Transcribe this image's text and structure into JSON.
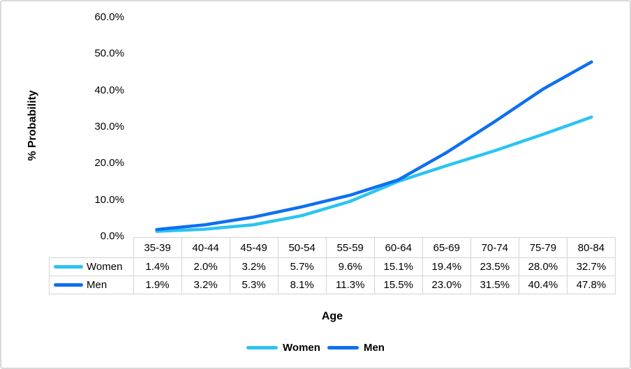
{
  "colors": {
    "women_line": "#2bc4f1",
    "men_line": "#0e6ff1",
    "table_border": "#d3d3d3",
    "frame_border": "#d9d9d9",
    "text": "#000000",
    "background": "#ffffff"
  },
  "chart_data": {
    "type": "line",
    "title": "",
    "xlabel": "Age",
    "ylabel": "% Probability",
    "categories": [
      "35-39",
      "40-44",
      "45-49",
      "50-54",
      "55-59",
      "60-64",
      "65-69",
      "70-74",
      "75-79",
      "80-84"
    ],
    "series": [
      {
        "name": "Women",
        "color": "#2bc4f1",
        "values": [
          1.4,
          2.0,
          3.2,
          5.7,
          9.6,
          15.1,
          19.4,
          23.5,
          28.0,
          32.7
        ],
        "labels": [
          "1.4%",
          "2.0%",
          "3.2%",
          "5.7%",
          "9.6%",
          "15.1%",
          "19.4%",
          "23.5%",
          "28.0%",
          "32.7%"
        ]
      },
      {
        "name": "Men",
        "color": "#0e6ff1",
        "values": [
          1.9,
          3.2,
          5.3,
          8.1,
          11.3,
          15.5,
          23.0,
          31.5,
          40.4,
          47.8
        ],
        "labels": [
          "1.9%",
          "3.2%",
          "5.3%",
          "8.1%",
          "11.3%",
          "15.5%",
          "23.0%",
          "31.5%",
          "40.4%",
          "47.8%"
        ]
      }
    ],
    "y_axis": {
      "ticks": [
        {
          "value": 0,
          "label": "0.0%"
        },
        {
          "value": 10,
          "label": "10.0%"
        },
        {
          "value": 20,
          "label": "20.0%"
        },
        {
          "value": 30,
          "label": "30.0%"
        },
        {
          "value": 40,
          "label": "40.0%"
        },
        {
          "value": 50,
          "label": "50.0%"
        },
        {
          "value": 60,
          "label": "60.0%"
        }
      ]
    },
    "ylim": [
      0,
      60
    ],
    "grid": false,
    "legend_position": "bottom",
    "data_table_shown": true
  }
}
